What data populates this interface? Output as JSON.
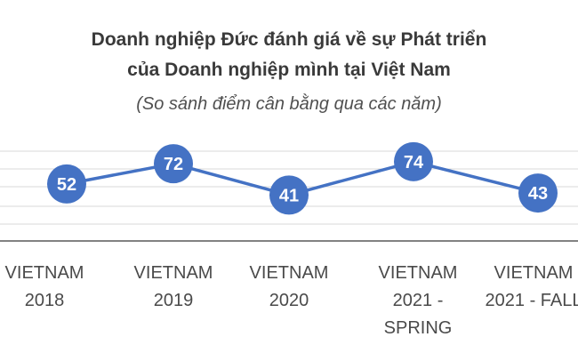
{
  "chart_data": {
    "type": "line",
    "title_line1": "Doanh nghiệp Đức đánh giá về sự Phát triển",
    "title_line2": "của Doanh nghiệp mình tại Việt Nam",
    "subtitle": "(So sánh điểm cân bằng qua các năm)",
    "categories": [
      "VIETNAM\n2018",
      "VIETNAM\n2019",
      "VIETNAM\n2020",
      "VIETNAM\n2021 -\nSPRING",
      "VIETNAM\n2021 - FALL"
    ],
    "values": [
      52,
      72,
      41,
      74,
      43
    ],
    "data_labels": [
      "52",
      "72",
      "41",
      "74",
      "43"
    ],
    "grid": true,
    "colors": {
      "line": "#4472c4",
      "marker": "#4472c4",
      "marker_text": "#ffffff",
      "grid": "#d9d9d9",
      "axis": "#595959"
    }
  }
}
